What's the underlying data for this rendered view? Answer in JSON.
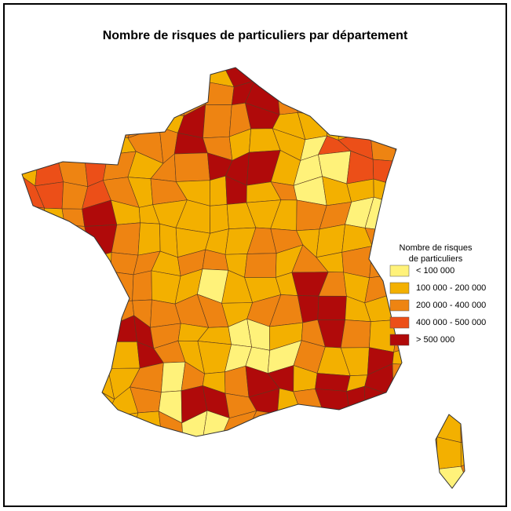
{
  "title": "Nombre de risques de particuliers par département",
  "legend": {
    "title": [
      "Nombre de risques",
      "de particuliers"
    ],
    "items": [
      {
        "label": "< 100 000",
        "color": "#fff27a"
      },
      {
        "label": "100 000 - 200 000",
        "color": "#f3b000"
      },
      {
        "label": "200 000 - 400 000",
        "color": "#ee8412"
      },
      {
        "label": "400 000 - 500 000",
        "color": "#ec4f18"
      },
      {
        "label": "> 500 000",
        "color": "#b00a0a"
      }
    ]
  }
}
